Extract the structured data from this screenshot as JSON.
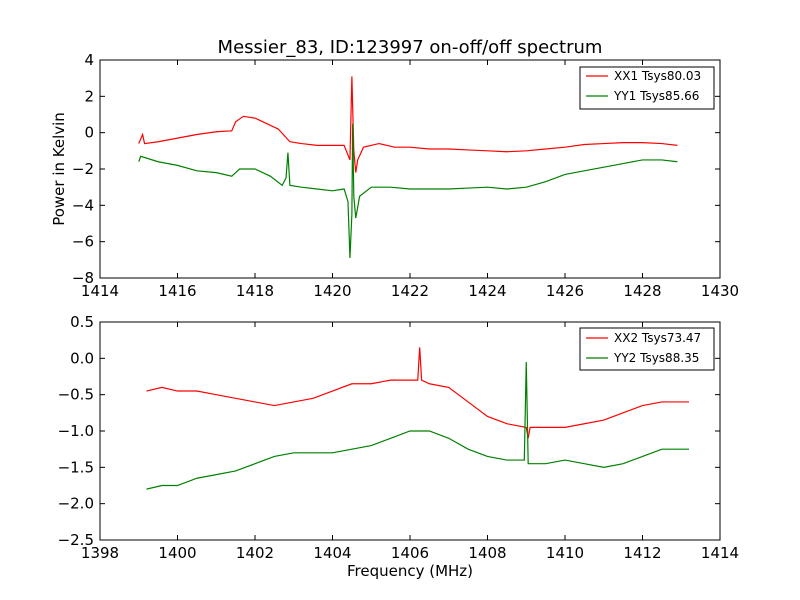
{
  "chart_data": [
    {
      "type": "line",
      "title": "Messier_83, ID:123997 on-off/off spectrum",
      "xlabel": "",
      "ylabel": "Power in Kelvin",
      "xlim": [
        1414,
        1430
      ],
      "ylim": [
        -8,
        4
      ],
      "xticks": [
        "1414",
        "1416",
        "1418",
        "1420",
        "1422",
        "1424",
        "1426",
        "1428",
        "1430"
      ],
      "yticks": [
        "4",
        "2",
        "0",
        "−2",
        "−4",
        "−6",
        "−8"
      ],
      "legend_position": "top-right",
      "grid": false,
      "series": [
        {
          "name": "XX1 Tsys80.03",
          "color": "#ff0000",
          "points": [
            [
              1415.0,
              -0.6
            ],
            [
              1415.1,
              -0.1
            ],
            [
              1415.15,
              -0.6
            ],
            [
              1415.5,
              -0.5
            ],
            [
              1416.0,
              -0.3
            ],
            [
              1416.5,
              -0.1
            ],
            [
              1417.0,
              0.05
            ],
            [
              1417.4,
              0.1
            ],
            [
              1417.5,
              0.6
            ],
            [
              1417.7,
              0.9
            ],
            [
              1418.0,
              0.8
            ],
            [
              1418.3,
              0.5
            ],
            [
              1418.6,
              0.2
            ],
            [
              1418.9,
              -0.5
            ],
            [
              1419.2,
              -0.6
            ],
            [
              1419.6,
              -0.7
            ],
            [
              1420.0,
              -0.7
            ],
            [
              1420.3,
              -0.7
            ],
            [
              1420.45,
              -1.5
            ],
            [
              1420.5,
              3.1
            ],
            [
              1420.55,
              -1.0
            ],
            [
              1420.6,
              -2.2
            ],
            [
              1420.65,
              -1.5
            ],
            [
              1420.8,
              -0.8
            ],
            [
              1421.2,
              -0.6
            ],
            [
              1421.6,
              -0.8
            ],
            [
              1422.0,
              -0.8
            ],
            [
              1422.5,
              -0.9
            ],
            [
              1423.0,
              -0.9
            ],
            [
              1423.5,
              -0.95
            ],
            [
              1424.0,
              -1.0
            ],
            [
              1424.5,
              -1.05
            ],
            [
              1425.0,
              -1.0
            ],
            [
              1425.5,
              -0.9
            ],
            [
              1426.0,
              -0.8
            ],
            [
              1426.5,
              -0.65
            ],
            [
              1427.0,
              -0.6
            ],
            [
              1427.5,
              -0.55
            ],
            [
              1428.0,
              -0.55
            ],
            [
              1428.5,
              -0.6
            ],
            [
              1428.9,
              -0.7
            ]
          ]
        },
        {
          "name": "YY1 Tsys85.66",
          "color": "#008000",
          "points": [
            [
              1415.0,
              -1.6
            ],
            [
              1415.05,
              -1.3
            ],
            [
              1415.5,
              -1.6
            ],
            [
              1416.0,
              -1.8
            ],
            [
              1416.5,
              -2.1
            ],
            [
              1417.0,
              -2.2
            ],
            [
              1417.4,
              -2.4
            ],
            [
              1417.6,
              -2.0
            ],
            [
              1418.0,
              -2.0
            ],
            [
              1418.4,
              -2.4
            ],
            [
              1418.7,
              -2.9
            ],
            [
              1418.8,
              -2.5
            ],
            [
              1418.85,
              -1.1
            ],
            [
              1418.9,
              -2.9
            ],
            [
              1419.2,
              -3.0
            ],
            [
              1419.6,
              -3.1
            ],
            [
              1420.0,
              -3.2
            ],
            [
              1420.3,
              -3.1
            ],
            [
              1420.4,
              -3.8
            ],
            [
              1420.45,
              -6.9
            ],
            [
              1420.5,
              -4.5
            ],
            [
              1420.52,
              0.5
            ],
            [
              1420.55,
              -3.5
            ],
            [
              1420.6,
              -4.7
            ],
            [
              1420.7,
              -3.5
            ],
            [
              1421.0,
              -3.0
            ],
            [
              1421.5,
              -3.0
            ],
            [
              1422.0,
              -3.1
            ],
            [
              1422.5,
              -3.1
            ],
            [
              1423.0,
              -3.1
            ],
            [
              1423.5,
              -3.05
            ],
            [
              1424.0,
              -3.0
            ],
            [
              1424.5,
              -3.1
            ],
            [
              1425.0,
              -3.0
            ],
            [
              1425.5,
              -2.7
            ],
            [
              1426.0,
              -2.3
            ],
            [
              1426.5,
              -2.1
            ],
            [
              1427.0,
              -1.9
            ],
            [
              1427.5,
              -1.7
            ],
            [
              1428.0,
              -1.5
            ],
            [
              1428.5,
              -1.5
            ],
            [
              1428.9,
              -1.6
            ]
          ]
        }
      ]
    },
    {
      "type": "line",
      "title": "",
      "xlabel": "Frequency (MHz)",
      "ylabel": "",
      "xlim": [
        1398,
        1414
      ],
      "ylim": [
        -2.5,
        0.5
      ],
      "xticks": [
        "1398",
        "1400",
        "1402",
        "1404",
        "1406",
        "1408",
        "1410",
        "1412",
        "1414"
      ],
      "yticks": [
        "0.5",
        "0.0",
        "−0.5",
        "−1.0",
        "−1.5",
        "−2.0",
        "−2.5"
      ],
      "legend_position": "top-right",
      "grid": false,
      "series": [
        {
          "name": "XX2 Tsys73.47",
          "color": "#ff0000",
          "points": [
            [
              1399.2,
              -0.45
            ],
            [
              1399.6,
              -0.4
            ],
            [
              1400.0,
              -0.45
            ],
            [
              1400.5,
              -0.45
            ],
            [
              1401.0,
              -0.5
            ],
            [
              1401.5,
              -0.55
            ],
            [
              1402.0,
              -0.6
            ],
            [
              1402.5,
              -0.65
            ],
            [
              1403.0,
              -0.6
            ],
            [
              1403.5,
              -0.55
            ],
            [
              1404.0,
              -0.45
            ],
            [
              1404.5,
              -0.35
            ],
            [
              1405.0,
              -0.35
            ],
            [
              1405.5,
              -0.3
            ],
            [
              1406.0,
              -0.3
            ],
            [
              1406.2,
              -0.3
            ],
            [
              1406.25,
              0.15
            ],
            [
              1406.3,
              -0.3
            ],
            [
              1406.5,
              -0.35
            ],
            [
              1407.0,
              -0.4
            ],
            [
              1407.5,
              -0.6
            ],
            [
              1408.0,
              -0.8
            ],
            [
              1408.5,
              -0.9
            ],
            [
              1409.0,
              -0.95
            ],
            [
              1409.05,
              -1.1
            ],
            [
              1409.1,
              -0.95
            ],
            [
              1409.5,
              -0.95
            ],
            [
              1410.0,
              -0.95
            ],
            [
              1410.5,
              -0.9
            ],
            [
              1411.0,
              -0.85
            ],
            [
              1411.5,
              -0.75
            ],
            [
              1412.0,
              -0.65
            ],
            [
              1412.5,
              -0.6
            ],
            [
              1413.2,
              -0.6
            ]
          ]
        },
        {
          "name": "YY2 Tsys88.35",
          "color": "#008000",
          "points": [
            [
              1399.2,
              -1.8
            ],
            [
              1399.6,
              -1.75
            ],
            [
              1400.0,
              -1.75
            ],
            [
              1400.5,
              -1.65
            ],
            [
              1401.0,
              -1.6
            ],
            [
              1401.5,
              -1.55
            ],
            [
              1402.0,
              -1.45
            ],
            [
              1402.5,
              -1.35
            ],
            [
              1403.0,
              -1.3
            ],
            [
              1403.5,
              -1.3
            ],
            [
              1404.0,
              -1.3
            ],
            [
              1404.5,
              -1.25
            ],
            [
              1405.0,
              -1.2
            ],
            [
              1405.5,
              -1.1
            ],
            [
              1406.0,
              -1.0
            ],
            [
              1406.5,
              -1.0
            ],
            [
              1407.0,
              -1.1
            ],
            [
              1407.5,
              -1.25
            ],
            [
              1408.0,
              -1.35
            ],
            [
              1408.5,
              -1.4
            ],
            [
              1408.95,
              -1.4
            ],
            [
              1409.0,
              -0.05
            ],
            [
              1409.05,
              -1.45
            ],
            [
              1409.5,
              -1.45
            ],
            [
              1410.0,
              -1.4
            ],
            [
              1410.5,
              -1.45
            ],
            [
              1411.0,
              -1.5
            ],
            [
              1411.5,
              -1.45
            ],
            [
              1412.0,
              -1.35
            ],
            [
              1412.5,
              -1.25
            ],
            [
              1413.2,
              -1.25
            ]
          ]
        }
      ]
    }
  ]
}
